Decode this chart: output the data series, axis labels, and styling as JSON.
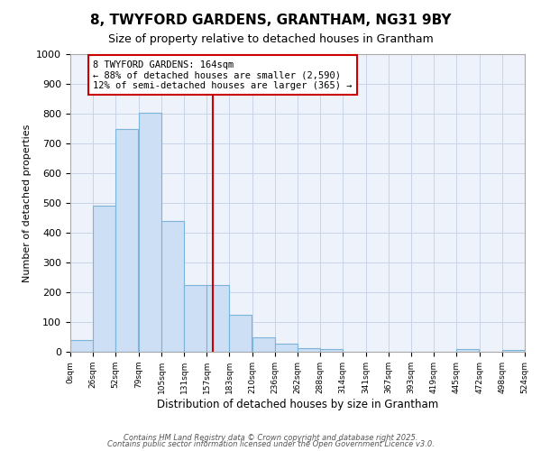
{
  "title": "8, TWYFORD GARDENS, GRANTHAM, NG31 9BY",
  "subtitle": "Size of property relative to detached houses in Grantham",
  "xlabel": "Distribution of detached houses by size in Grantham",
  "ylabel": "Number of detached properties",
  "bar_color": "#ccdff5",
  "bar_edge_color": "#7ab4d8",
  "bar_left_edges": [
    0,
    26,
    52,
    79,
    105,
    131,
    157,
    183,
    210,
    236,
    262,
    288,
    314,
    341,
    367,
    393,
    419,
    445,
    472,
    498
  ],
  "bar_heights": [
    40,
    490,
    748,
    802,
    440,
    225,
    225,
    125,
    50,
    28,
    13,
    8,
    0,
    0,
    0,
    0,
    0,
    10,
    0,
    5
  ],
  "bin_width": 26,
  "xlim": [
    0,
    524
  ],
  "ylim": [
    0,
    1000
  ],
  "yticks": [
    0,
    100,
    200,
    300,
    400,
    500,
    600,
    700,
    800,
    900,
    1000
  ],
  "xtick_labels": [
    "0sqm",
    "26sqm",
    "52sqm",
    "79sqm",
    "105sqm",
    "131sqm",
    "157sqm",
    "183sqm",
    "210sqm",
    "236sqm",
    "262sqm",
    "288sqm",
    "314sqm",
    "341sqm",
    "367sqm",
    "393sqm",
    "419sqm",
    "445sqm",
    "472sqm",
    "498sqm",
    "524sqm"
  ],
  "property_size": 164,
  "annotation_text": "8 TWYFORD GARDENS: 164sqm\n← 88% of detached houses are smaller (2,590)\n12% of semi-detached houses are larger (365) →",
  "annotation_box_facecolor": "#ffffff",
  "annotation_border_color": "#cc0000",
  "vline_color": "#cc0000",
  "vline_x": 164,
  "grid_color": "#c8d4e8",
  "bg_color": "#ffffff",
  "plot_bg_color": "#eef2fa",
  "footnote1": "Contains HM Land Registry data © Crown copyright and database right 2025.",
  "footnote2": "Contains public sector information licensed under the Open Government Licence v3.0."
}
